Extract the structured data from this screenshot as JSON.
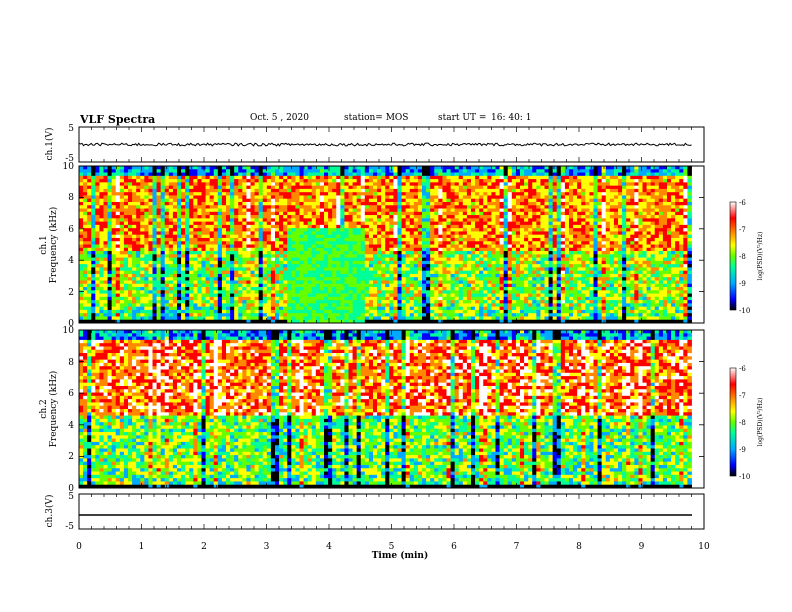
{
  "header": {
    "title": "VLF Spectra",
    "date": "Oct. 5 , 2020",
    "station": "station= MOS",
    "start_label": "start  UT =",
    "start_time": "16: 40: 1"
  },
  "colors": {
    "spectrogram_scale": [
      "#000000",
      "#0000ff",
      "#00aaff",
      "#00ff99",
      "#66ff00",
      "#ffff00",
      "#ff8800",
      "#ff0000",
      "#ffffff"
    ]
  },
  "chart_data": [
    {
      "type": "line",
      "ylabel": "ch.1(V)",
      "ylim": [
        -5,
        5
      ],
      "ytick_labels": [
        "5",
        "-5"
      ],
      "series": [
        {
          "name": "",
          "level": 0,
          "values_range": [
            -0.4,
            0.4
          ]
        }
      ]
    },
    {
      "type": "heatmap",
      "ylabel": "ch.1",
      "ylabel2": "Frequency  (kHz)",
      "ylim": [
        0,
        10
      ],
      "ytick_labels": [
        "0",
        "2",
        "4",
        "6",
        "8",
        "10"
      ],
      "xlim": [
        0,
        10
      ],
      "data_extent_min": 9.8,
      "colorbar": {
        "label": "log(PSD)(V²/Hz)",
        "range": [
          -10,
          -6
        ],
        "tick_labels": [
          "-6",
          "-7",
          "-8",
          "-9",
          "-10"
        ]
      }
    },
    {
      "type": "heatmap",
      "ylabel": "ch.2",
      "ylabel2": "Frequency  (kHz)",
      "ylim": [
        0,
        10
      ],
      "ytick_labels": [
        "0",
        "2",
        "4",
        "6",
        "8",
        "10"
      ],
      "xlim": [
        0,
        10
      ],
      "data_extent_min": 9.8,
      "colorbar": {
        "label": "log(PSD)(V²/Hz)",
        "range": [
          -10,
          -6
        ],
        "tick_labels": [
          "-6",
          "-7",
          "-8",
          "-9",
          "-10"
        ]
      }
    },
    {
      "type": "line",
      "ylabel": "ch.3(V)",
      "ylim": [
        -5,
        5
      ],
      "ytick_labels": [
        "5",
        "-5"
      ],
      "xlabel": "Time  (min)",
      "xlim": [
        0,
        10
      ],
      "xtick_labels": [
        "0",
        "1",
        "2",
        "3",
        "4",
        "5",
        "6",
        "7",
        "8",
        "9",
        "10"
      ],
      "series": [
        {
          "name": "",
          "level": -1,
          "values_range": [
            -1,
            -1
          ]
        }
      ]
    }
  ]
}
